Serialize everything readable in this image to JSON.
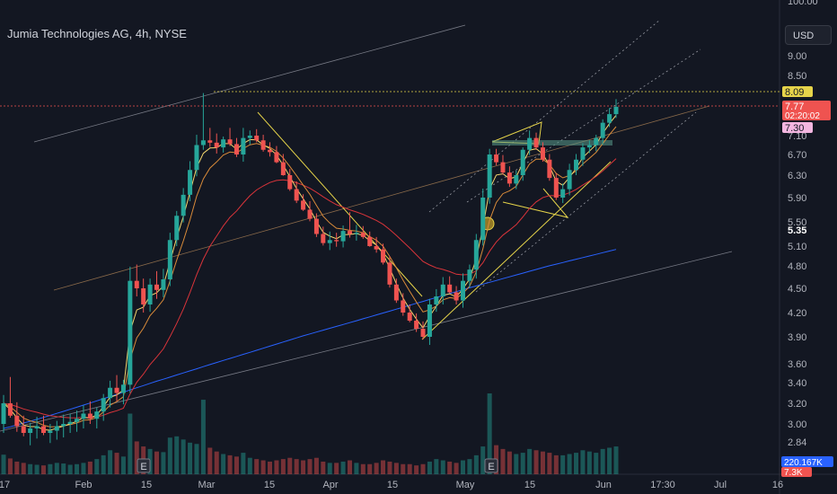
{
  "header": {
    "title": "Jumia Technologies AG, 4h, NYSE",
    "currency": "USD"
  },
  "colors": {
    "background": "#131722",
    "up": "#26a69a",
    "down": "#ef5350",
    "ema_fast": "#f5d76e",
    "ema_slow": "#d98b3a",
    "ma_red": "#d9343a",
    "ma_blue": "#2962ff",
    "pattern": "#e6d44a"
  },
  "chart_data": {
    "type": "candlestick",
    "symbol": "Jumia Technologies AG",
    "timeframe": "4h",
    "exchange": "NYSE",
    "y_ticks": [
      "100.00",
      "9.00",
      "8.50",
      "7.10",
      "6.70",
      "6.30",
      "5.90",
      "5.50",
      "5.10",
      "4.80",
      "4.50",
      "4.20",
      "3.90",
      "3.60",
      "3.40",
      "3.20",
      "3.00",
      "2.84"
    ],
    "x_ticks": [
      "17",
      "Feb",
      "15",
      "Mar",
      "15",
      "Apr",
      "15",
      "May",
      "15",
      "Jun",
      "17:30",
      "Jul",
      "16"
    ],
    "price_badges": {
      "high_line": "8.09",
      "last_price": "7.77",
      "countdown": "02:20:02",
      "ema_value": "7.30",
      "ma_value": "5.35"
    },
    "volume_badges": {
      "volume": "220.167K",
      "volume_ma": "7.3K"
    },
    "earnings_markers": [
      "E",
      "E"
    ],
    "ohlc": [
      [
        3.0,
        3.28,
        2.92,
        3.2
      ],
      [
        3.2,
        3.46,
        3.06,
        3.08
      ],
      [
        3.08,
        3.21,
        2.93,
        2.98
      ],
      [
        2.98,
        3.08,
        2.89,
        2.92
      ],
      [
        2.92,
        3.01,
        2.81,
        2.96
      ],
      [
        2.96,
        3.07,
        2.87,
        2.98
      ],
      [
        2.98,
        3.08,
        2.9,
        2.92
      ],
      [
        2.92,
        3.0,
        2.83,
        2.94
      ],
      [
        2.94,
        3.03,
        2.86,
        2.98
      ],
      [
        2.98,
        3.09,
        2.88,
        3.0
      ],
      [
        3.0,
        3.1,
        2.92,
        3.02
      ],
      [
        3.02,
        3.13,
        2.93,
        3.05
      ],
      [
        3.05,
        3.18,
        2.96,
        3.1
      ],
      [
        3.1,
        3.22,
        3.0,
        3.05
      ],
      [
        3.05,
        3.16,
        2.96,
        3.12
      ],
      [
        3.12,
        3.29,
        3.03,
        3.25
      ],
      [
        3.25,
        3.42,
        3.16,
        3.35
      ],
      [
        3.35,
        3.48,
        3.22,
        3.3
      ],
      [
        3.3,
        3.43,
        3.19,
        3.38
      ],
      [
        3.38,
        4.79,
        3.3,
        4.6
      ],
      [
        4.6,
        4.82,
        4.4,
        4.5
      ],
      [
        4.5,
        4.63,
        4.2,
        4.3
      ],
      [
        4.3,
        4.63,
        4.21,
        4.55
      ],
      [
        4.55,
        4.73,
        4.37,
        4.48
      ],
      [
        4.48,
        4.76,
        4.39,
        4.62
      ],
      [
        4.62,
        5.32,
        4.53,
        5.2
      ],
      [
        5.2,
        5.68,
        5.1,
        5.6
      ],
      [
        5.6,
        6.07,
        5.49,
        5.95
      ],
      [
        5.95,
        6.57,
        5.84,
        6.4
      ],
      [
        6.4,
        7.12,
        6.28,
        6.9
      ],
      [
        6.9,
        8.09,
        6.8,
        7.0
      ],
      [
        7.0,
        7.28,
        6.86,
        6.95
      ],
      [
        6.95,
        7.15,
        6.72,
        6.85
      ],
      [
        6.85,
        7.08,
        6.74,
        7.02
      ],
      [
        7.02,
        7.28,
        6.88,
        6.92
      ],
      [
        6.92,
        7.05,
        6.65,
        6.7
      ],
      [
        6.7,
        7.28,
        6.56,
        7.05
      ],
      [
        7.05,
        7.22,
        6.91,
        7.1
      ],
      [
        7.1,
        7.25,
        6.96,
        7.0
      ],
      [
        7.0,
        7.12,
        6.76,
        6.8
      ],
      [
        6.8,
        6.96,
        6.66,
        6.75
      ],
      [
        6.75,
        6.88,
        6.53,
        6.55
      ],
      [
        6.55,
        6.71,
        6.29,
        6.3
      ],
      [
        6.3,
        6.42,
        6.02,
        6.05
      ],
      [
        6.05,
        6.19,
        5.81,
        5.85
      ],
      [
        5.85,
        5.96,
        5.68,
        5.7
      ],
      [
        5.7,
        5.84,
        5.51,
        5.55
      ],
      [
        5.55,
        5.64,
        5.25,
        5.3
      ],
      [
        5.3,
        5.42,
        5.11,
        5.15
      ],
      [
        5.15,
        5.34,
        5.04,
        5.2
      ],
      [
        5.2,
        5.32,
        5.09,
        5.18
      ],
      [
        5.18,
        5.44,
        5.08,
        5.35
      ],
      [
        5.35,
        5.66,
        5.24,
        5.3
      ],
      [
        5.3,
        5.45,
        5.19,
        5.32
      ],
      [
        5.32,
        5.43,
        5.22,
        5.25
      ],
      [
        5.25,
        5.34,
        5.09,
        5.1
      ],
      [
        5.1,
        5.25,
        5.0,
        5.05
      ],
      [
        5.05,
        5.14,
        4.82,
        4.85
      ],
      [
        4.85,
        4.95,
        4.51,
        4.55
      ],
      [
        4.55,
        4.63,
        4.32,
        4.35
      ],
      [
        4.35,
        4.44,
        4.16,
        4.2
      ],
      [
        4.2,
        4.3,
        4.08,
        4.1
      ],
      [
        4.1,
        4.19,
        3.96,
        4.0
      ],
      [
        4.0,
        4.09,
        3.87,
        3.9
      ],
      [
        3.9,
        4.37,
        3.81,
        4.3
      ],
      [
        4.3,
        4.49,
        4.21,
        4.4
      ],
      [
        4.4,
        4.65,
        4.3,
        4.55
      ],
      [
        4.55,
        4.66,
        4.44,
        4.45
      ],
      [
        4.45,
        4.53,
        4.3,
        4.35
      ],
      [
        4.35,
        4.7,
        4.26,
        4.6
      ],
      [
        4.6,
        4.82,
        4.51,
        4.75
      ],
      [
        4.75,
        5.3,
        4.63,
        5.2
      ],
      [
        5.2,
        6.06,
        5.11,
        5.9
      ],
      [
        5.9,
        6.82,
        5.8,
        6.7
      ],
      [
        6.7,
        6.82,
        6.49,
        6.55
      ],
      [
        6.55,
        6.69,
        6.31,
        6.35
      ],
      [
        6.35,
        6.47,
        6.09,
        6.15
      ],
      [
        6.15,
        6.39,
        6.05,
        6.3
      ],
      [
        6.3,
        6.85,
        6.2,
        6.8
      ],
      [
        6.8,
        7.22,
        6.69,
        7.05
      ],
      [
        7.05,
        7.17,
        6.8,
        6.85
      ],
      [
        6.85,
        6.96,
        6.56,
        6.6
      ],
      [
        6.6,
        6.71,
        6.2,
        6.25
      ],
      [
        6.25,
        6.34,
        5.86,
        5.9
      ],
      [
        5.9,
        6.15,
        5.81,
        6.05
      ],
      [
        6.05,
        6.52,
        5.94,
        6.4
      ],
      [
        6.4,
        6.71,
        6.3,
        6.6
      ],
      [
        6.6,
        6.94,
        6.48,
        6.85
      ],
      [
        6.85,
        7.0,
        6.73,
        6.9
      ],
      [
        6.9,
        7.12,
        6.77,
        7.05
      ],
      [
        7.05,
        7.48,
        6.91,
        7.4
      ],
      [
        7.4,
        7.74,
        7.3,
        7.6
      ],
      [
        7.6,
        7.95,
        7.51,
        7.77
      ]
    ],
    "volume": [
      31,
      25,
      20,
      18,
      16,
      15,
      14,
      16,
      18,
      17,
      15,
      16,
      18,
      20,
      24,
      30,
      38,
      34,
      28,
      96,
      52,
      44,
      40,
      36,
      35,
      58,
      60,
      55,
      50,
      48,
      118,
      42,
      36,
      32,
      30,
      28,
      34,
      26,
      24,
      22,
      20,
      22,
      24,
      26,
      24,
      22,
      24,
      26,
      20,
      18,
      18,
      20,
      22,
      18,
      16,
      16,
      18,
      22,
      20,
      18,
      16,
      16,
      14,
      16,
      20,
      24,
      22,
      20,
      18,
      22,
      24,
      30,
      44,
      128,
      46,
      40,
      36,
      32,
      34,
      40,
      38,
      36,
      34,
      30,
      30,
      32,
      34,
      38,
      36,
      34,
      40,
      42,
      44
    ]
  }
}
